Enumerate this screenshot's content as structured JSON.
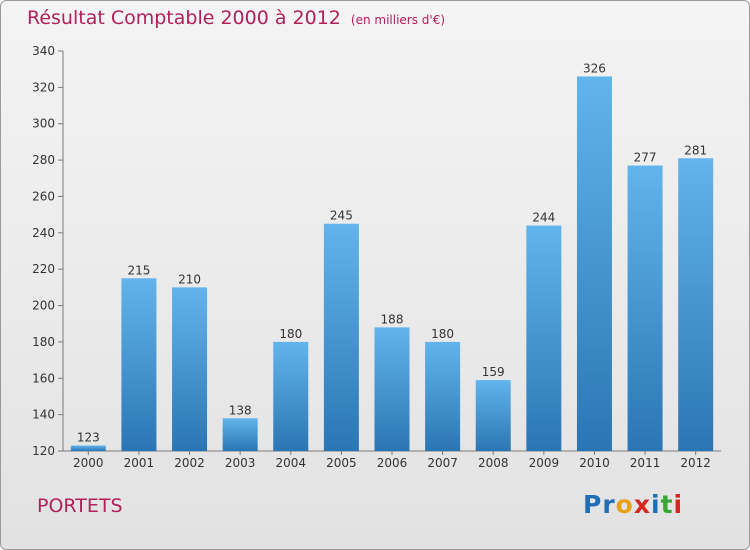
{
  "title": "Résultat Comptable 2000 à 2012",
  "subtitle": "(en milliers d'€)",
  "place": "PORTETS",
  "logo": {
    "text": "Proxiti",
    "letters": [
      "P",
      "r",
      "o",
      "x",
      "i",
      "t",
      "i"
    ],
    "colors": [
      "#1f6fb5",
      "#1f6fb5",
      "#e8a21a",
      "#d7261e",
      "#1f6fb5",
      "#3aa535",
      "#d7261e"
    ]
  },
  "colors": {
    "bar_top": "#62b4ec",
    "bar_bottom": "#2a76b4",
    "axis": "#7a7a7a",
    "text": "#333333",
    "accent": "#b0205a"
  },
  "chart_data": {
    "type": "bar",
    "title": "Résultat Comptable 2000 à 2012",
    "subtitle": "(en milliers d'€)",
    "xlabel": "",
    "ylabel": "",
    "categories": [
      "2000",
      "2001",
      "2002",
      "2003",
      "2004",
      "2005",
      "2006",
      "2007",
      "2008",
      "2009",
      "2010",
      "2011",
      "2012"
    ],
    "values": [
      123,
      215,
      210,
      138,
      180,
      245,
      188,
      180,
      159,
      244,
      326,
      277,
      281
    ],
    "ylim": [
      120,
      340
    ],
    "yticks": [
      120,
      140,
      160,
      180,
      200,
      220,
      240,
      260,
      280,
      300,
      320,
      340
    ],
    "data_labels": true,
    "grid": false
  }
}
